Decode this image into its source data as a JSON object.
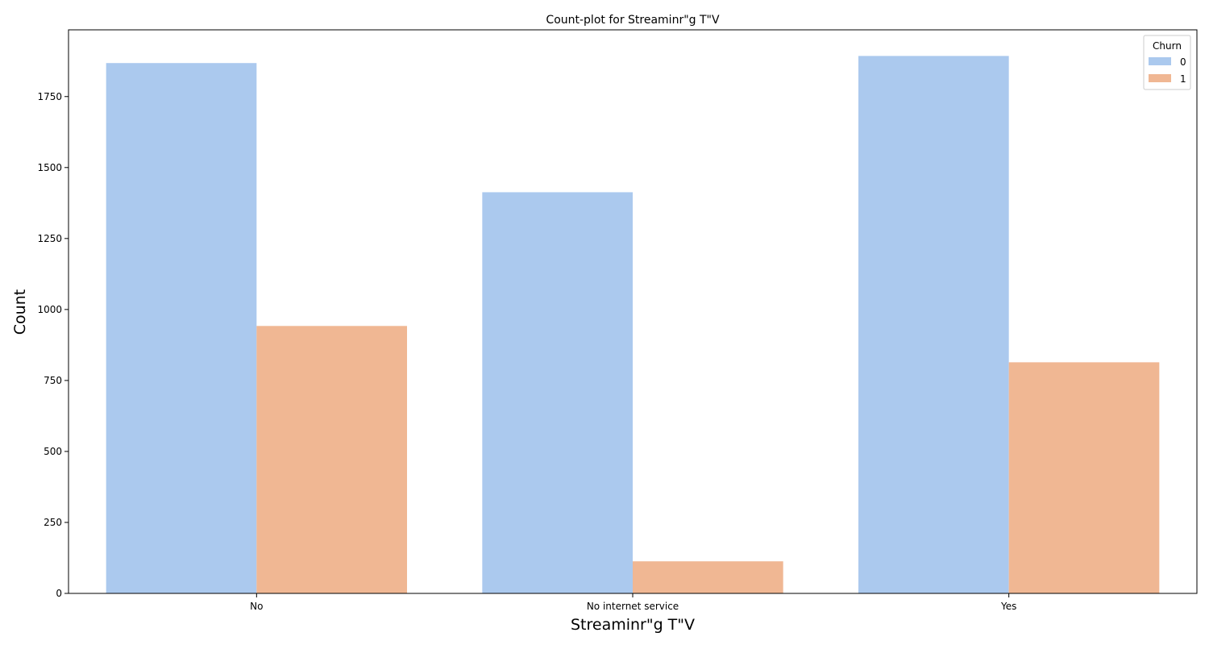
{
  "chart_data": {
    "type": "bar",
    "title": "Count-plot for Streaminr\"g T\"V",
    "xlabel": "Streaminr\"g T\"V",
    "ylabel": "Count",
    "categories": [
      "No",
      "No internet service",
      "Yes"
    ],
    "series": [
      {
        "name": "0",
        "color": "#abc9ee",
        "values": [
          1868,
          1413,
          1893
        ]
      },
      {
        "name": "1",
        "color": "#f0b793",
        "values": [
          942,
          113,
          814
        ]
      }
    ],
    "ylim": [
      0,
      1985
    ],
    "yticks": [
      0,
      250,
      500,
      750,
      1000,
      1250,
      1500,
      1750
    ],
    "grid": false,
    "legend": {
      "title": "Churn",
      "placement": "top-right"
    }
  }
}
